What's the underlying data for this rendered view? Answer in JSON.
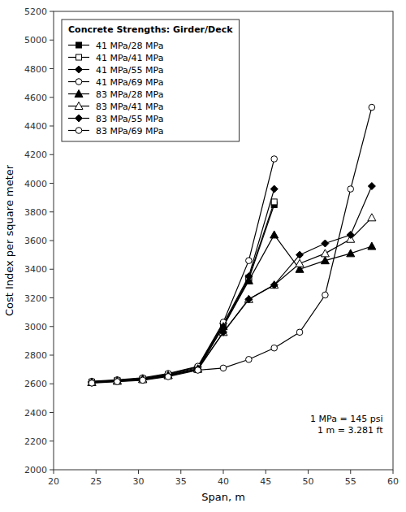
{
  "chart_data": {
    "type": "line",
    "title": "Concrete Strengths: Girder/Deck",
    "xlabel": "Span, m",
    "ylabel": "Cost Index per square meter",
    "xlim": [
      20,
      60
    ],
    "ylim": [
      2000,
      5200
    ],
    "xticks": [
      20,
      25,
      30,
      35,
      40,
      45,
      50,
      55,
      60
    ],
    "yticks": [
      2000,
      2200,
      2400,
      2600,
      2800,
      3000,
      3200,
      3400,
      3600,
      3800,
      4000,
      4200,
      4400,
      4600,
      4800,
      5000,
      5200
    ],
    "annotation": "1 MPa = 145 psi\n1 m = 3.281 ft",
    "grid": false,
    "legend": "upper-left",
    "series": [
      {
        "name": "41 MPa/28 MPa",
        "marker": "square",
        "color": "#000000",
        "x": [
          24.5,
          27.5,
          30.5,
          33.5,
          37,
          40,
          43,
          46
        ],
        "values": [
          2610,
          2620,
          2630,
          2660,
          2700,
          3000,
          3330,
          3850
        ]
      },
      {
        "name": "41 MPa/41 MPa",
        "marker": "open-square",
        "color": "#000000",
        "x": [
          24.5,
          27.5,
          30.5,
          33.5,
          37,
          40,
          43,
          46
        ],
        "values": [
          2612,
          2622,
          2635,
          2665,
          2712,
          3010,
          3340,
          3870
        ]
      },
      {
        "name": "41 MPa/55 MPa",
        "marker": "diamond",
        "color": "#000000",
        "x": [
          24.5,
          27.5,
          30.5,
          33.5,
          37,
          40,
          43,
          46
        ],
        "values": [
          2615,
          2625,
          2638,
          2668,
          2718,
          3020,
          3350,
          3960
        ]
      },
      {
        "name": "41 MPa/69 MPa",
        "marker": "open-circle",
        "color": "#000000",
        "x": [
          24.5,
          27.5,
          30.5,
          33.5,
          37,
          40,
          43,
          46
        ],
        "values": [
          2618,
          2628,
          2642,
          2672,
          2722,
          3030,
          3460,
          4170
        ]
      },
      {
        "name": "83 MPa/28 MPa",
        "marker": "triangle",
        "color": "#000000",
        "x": [
          24.5,
          27.5,
          30.5,
          33.5,
          37,
          40,
          43,
          46,
          49,
          52,
          55,
          57.5
        ],
        "values": [
          2610,
          2620,
          2633,
          2660,
          2705,
          3000,
          3320,
          3640,
          3400,
          3460,
          3510,
          3560
        ]
      },
      {
        "name": "83 MPa/41 MPa",
        "marker": "open-triangle",
        "color": "#000000",
        "x": [
          24.5,
          27.5,
          30.5,
          33.5,
          37,
          40,
          43,
          46,
          49,
          52,
          55,
          57.5
        ],
        "values": [
          2610,
          2620,
          2630,
          2658,
          2703,
          2960,
          3190,
          3290,
          3440,
          3510,
          3610,
          3760
        ]
      },
      {
        "name": "83 MPa/55 MPa",
        "marker": "diamond",
        "color": "#000000",
        "x": [
          24.5,
          27.5,
          30.5,
          33.5,
          37,
          40,
          43,
          46,
          49,
          52,
          55,
          57.5
        ],
        "values": [
          2608,
          2618,
          2628,
          2655,
          2700,
          2960,
          3190,
          3290,
          3500,
          3580,
          3640,
          3980
        ]
      },
      {
        "name": "83 MPa/69 MPa",
        "marker": "open-circle",
        "color": "#000000",
        "x": [
          24.5,
          27.5,
          30.5,
          33.5,
          37,
          40,
          43,
          46,
          49,
          52,
          55,
          57.5
        ],
        "values": [
          2605,
          2615,
          2625,
          2650,
          2695,
          2710,
          2770,
          2850,
          2960,
          3220,
          3960,
          4530
        ]
      }
    ]
  }
}
